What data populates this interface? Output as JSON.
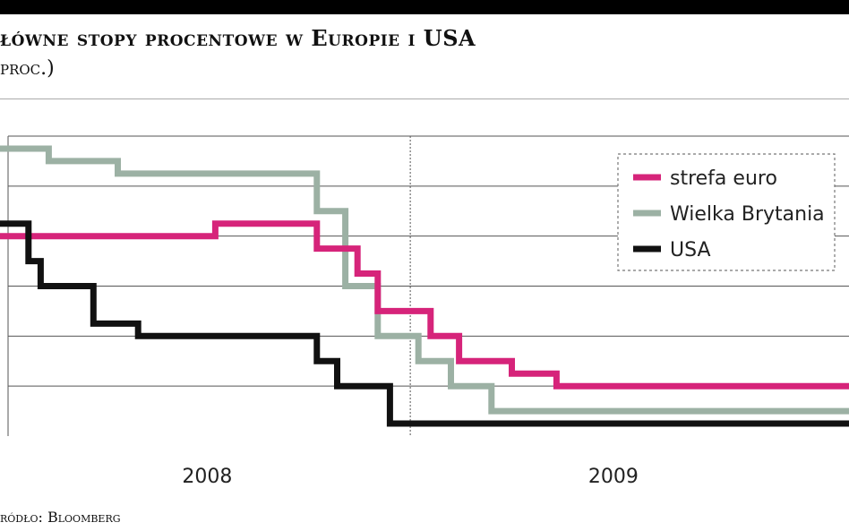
{
  "header": {
    "title": "łówne stopy procentowe w Europie i USA",
    "subtitle": "proc.)"
  },
  "footer": {
    "source": "ródło: Bloomberg"
  },
  "chart_data": {
    "type": "line",
    "step": true,
    "x_ticks": [
      {
        "label": "2008",
        "x": 2008.5
      },
      {
        "label": "2009",
        "x": 2009.5
      }
    ],
    "xlim": [
      2007.99,
      2010.08
    ],
    "ylim": [
      0,
      6
    ],
    "gridlines": [
      1,
      2,
      3,
      4,
      5,
      6
    ],
    "grid": true,
    "year_divider_x": 2009.0,
    "legend": {
      "position": "top-right",
      "entries": [
        {
          "label": "strefa euro",
          "series": 0
        },
        {
          "label": "Wielka Brytania",
          "series": 1
        },
        {
          "label": "USA",
          "series": 2
        }
      ]
    },
    "series": [
      {
        "name": "strefa euro",
        "color": "#d6247a",
        "points": [
          [
            2007.99,
            4.0
          ],
          [
            2008.52,
            4.0
          ],
          [
            2008.52,
            4.25
          ],
          [
            2008.77,
            4.25
          ],
          [
            2008.77,
            3.75
          ],
          [
            2008.87,
            3.75
          ],
          [
            2008.87,
            3.25
          ],
          [
            2008.92,
            3.25
          ],
          [
            2008.92,
            2.5
          ],
          [
            2009.05,
            2.5
          ],
          [
            2009.05,
            2.0
          ],
          [
            2009.12,
            2.0
          ],
          [
            2009.12,
            1.5
          ],
          [
            2009.25,
            1.5
          ],
          [
            2009.25,
            1.25
          ],
          [
            2009.36,
            1.25
          ],
          [
            2009.36,
            1.0
          ],
          [
            2010.08,
            1.0
          ]
        ]
      },
      {
        "name": "Wielka Brytania",
        "color": "#9cb1a4",
        "points": [
          [
            2007.99,
            5.75
          ],
          [
            2008.11,
            5.75
          ],
          [
            2008.11,
            5.5
          ],
          [
            2008.28,
            5.5
          ],
          [
            2008.28,
            5.25
          ],
          [
            2008.77,
            5.25
          ],
          [
            2008.77,
            4.5
          ],
          [
            2008.84,
            4.5
          ],
          [
            2008.84,
            3.0
          ],
          [
            2008.92,
            3.0
          ],
          [
            2008.92,
            2.0
          ],
          [
            2009.02,
            2.0
          ],
          [
            2009.02,
            1.5
          ],
          [
            2009.1,
            1.5
          ],
          [
            2009.1,
            1.0
          ],
          [
            2009.2,
            1.0
          ],
          [
            2009.2,
            0.5
          ],
          [
            2010.08,
            0.5
          ]
        ]
      },
      {
        "name": "USA",
        "color": "#111111",
        "points": [
          [
            2007.99,
            4.25
          ],
          [
            2008.06,
            4.25
          ],
          [
            2008.06,
            3.5
          ],
          [
            2008.09,
            3.5
          ],
          [
            2008.09,
            3.0
          ],
          [
            2008.22,
            3.0
          ],
          [
            2008.22,
            2.25
          ],
          [
            2008.33,
            2.25
          ],
          [
            2008.33,
            2.0
          ],
          [
            2008.77,
            2.0
          ],
          [
            2008.77,
            1.5
          ],
          [
            2008.82,
            1.5
          ],
          [
            2008.82,
            1.0
          ],
          [
            2008.95,
            1.0
          ],
          [
            2008.95,
            0.25
          ],
          [
            2010.08,
            0.25
          ]
        ]
      }
    ]
  }
}
